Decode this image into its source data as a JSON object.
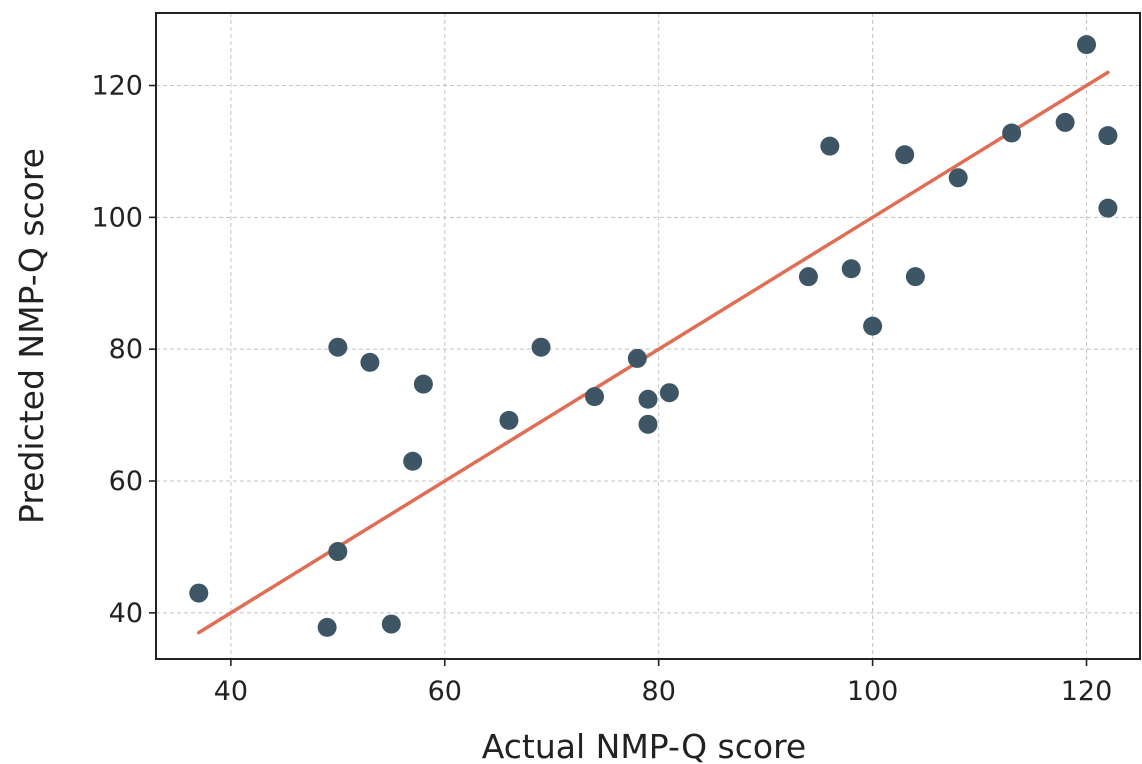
{
  "chart_data": {
    "type": "scatter",
    "title": "",
    "xlabel": "Actual NMP-Q score",
    "ylabel": "Predicted NMP-Q score",
    "xlim": [
      33,
      125
    ],
    "ylim": [
      33,
      131
    ],
    "x_ticks": [
      40,
      60,
      80,
      100,
      120
    ],
    "y_ticks": [
      40,
      60,
      80,
      100,
      120
    ],
    "grid": true,
    "points": [
      {
        "x": 37,
        "y": 43
      },
      {
        "x": 49,
        "y": 37.8
      },
      {
        "x": 50,
        "y": 80.3
      },
      {
        "x": 50,
        "y": 49.3
      },
      {
        "x": 53,
        "y": 78
      },
      {
        "x": 55,
        "y": 38.3
      },
      {
        "x": 57,
        "y": 63
      },
      {
        "x": 58,
        "y": 74.7
      },
      {
        "x": 66,
        "y": 69.2
      },
      {
        "x": 69,
        "y": 80.3
      },
      {
        "x": 74,
        "y": 72.8
      },
      {
        "x": 78,
        "y": 78.6
      },
      {
        "x": 79,
        "y": 72.4
      },
      {
        "x": 79,
        "y": 68.6
      },
      {
        "x": 81,
        "y": 73.4
      },
      {
        "x": 94,
        "y": 91
      },
      {
        "x": 96,
        "y": 110.8
      },
      {
        "x": 98,
        "y": 92.2
      },
      {
        "x": 100,
        "y": 83.5
      },
      {
        "x": 103,
        "y": 109.5
      },
      {
        "x": 104,
        "y": 91
      },
      {
        "x": 108,
        "y": 106
      },
      {
        "x": 113,
        "y": 112.8
      },
      {
        "x": 118,
        "y": 114.4
      },
      {
        "x": 120,
        "y": 126.2
      },
      {
        "x": 122,
        "y": 112.4
      },
      {
        "x": 122,
        "y": 101.4
      }
    ],
    "trend_line": {
      "x": [
        37,
        122
      ],
      "y": [
        37,
        122
      ]
    },
    "colors": {
      "points": "#3e5566",
      "trend_line": "#e06e55"
    }
  }
}
